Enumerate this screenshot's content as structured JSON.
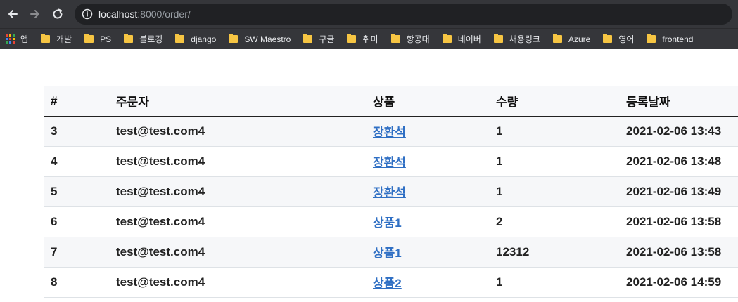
{
  "browser": {
    "url_host": "localhost",
    "url_rest": ":8000/order/",
    "bookmarks": [
      {
        "label": "앱",
        "kind": "apps"
      },
      {
        "label": "개발",
        "kind": "folder"
      },
      {
        "label": "PS",
        "kind": "folder"
      },
      {
        "label": "블로깅",
        "kind": "folder"
      },
      {
        "label": "django",
        "kind": "folder"
      },
      {
        "label": "SW Maestro",
        "kind": "folder"
      },
      {
        "label": "구글",
        "kind": "folder"
      },
      {
        "label": "취미",
        "kind": "folder"
      },
      {
        "label": "항공대",
        "kind": "folder"
      },
      {
        "label": "네이버",
        "kind": "folder"
      },
      {
        "label": "채용링크",
        "kind": "folder"
      },
      {
        "label": "Azure",
        "kind": "folder"
      },
      {
        "label": "영어",
        "kind": "folder"
      },
      {
        "label": "frontend",
        "kind": "folder"
      }
    ]
  },
  "table": {
    "headers": {
      "num": "#",
      "user": "주문자",
      "product": "상품",
      "qty": "수량",
      "date": "등록날짜"
    },
    "rows": [
      {
        "num": "3",
        "user": "test@test.com4",
        "product": "장환석",
        "qty": "1",
        "date": "2021-02-06 13:43"
      },
      {
        "num": "4",
        "user": "test@test.com4",
        "product": "장환석",
        "qty": "1",
        "date": "2021-02-06 13:48"
      },
      {
        "num": "5",
        "user": "test@test.com4",
        "product": "장환석",
        "qty": "1",
        "date": "2021-02-06 13:49"
      },
      {
        "num": "6",
        "user": "test@test.com4",
        "product": "상품1",
        "qty": "2",
        "date": "2021-02-06 13:58"
      },
      {
        "num": "7",
        "user": "test@test.com4",
        "product": "상품1",
        "qty": "12312",
        "date": "2021-02-06 13:58"
      },
      {
        "num": "8",
        "user": "test@test.com4",
        "product": "상품2",
        "qty": "1",
        "date": "2021-02-06 14:59"
      }
    ]
  },
  "colors": {
    "chrome": "#35363a",
    "omnibox": "#202124",
    "folder": "#f6c543",
    "link": "#2f6fc4"
  }
}
